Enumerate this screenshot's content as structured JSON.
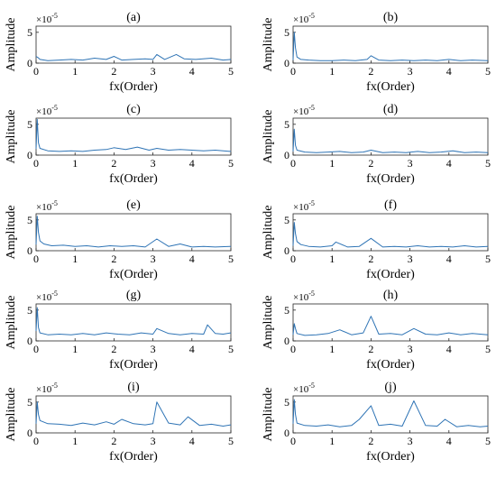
{
  "chart_data": [
    {
      "type": "line",
      "title": "(a)",
      "xlabel": "fx(Order)",
      "ylabel": "Amplitude",
      "y_exponent": "×10",
      "y_exponent_power": "-5",
      "xlim": [
        0,
        5
      ],
      "ylim": [
        0,
        6
      ],
      "xticks": [
        "0",
        "1",
        "2",
        "3",
        "4",
        "5"
      ],
      "yticks": [
        "0",
        "5"
      ],
      "color": "#2f74b5",
      "series": [
        {
          "x": [
            0,
            0.05,
            0.1,
            0.3,
            0.6,
            0.9,
            1.2,
            1.5,
            1.8,
            2.0,
            2.2,
            2.5,
            2.8,
            3.0,
            3.1,
            3.3,
            3.6,
            3.8,
            4.1,
            4.5,
            4.8,
            5.0
          ],
          "y": [
            1.1,
            0.9,
            0.6,
            0.4,
            0.5,
            0.6,
            0.5,
            0.8,
            0.6,
            1.1,
            0.5,
            0.6,
            0.7,
            0.6,
            1.4,
            0.6,
            1.4,
            0.7,
            0.6,
            0.8,
            0.5,
            0.6
          ]
        }
      ]
    },
    {
      "type": "line",
      "title": "(b)",
      "xlabel": "fx(Order)",
      "ylabel": "Amplitude",
      "y_exponent": "×10",
      "y_exponent_power": "-5",
      "xlim": [
        0,
        5
      ],
      "ylim": [
        0,
        6
      ],
      "xticks": [
        "0",
        "1",
        "2",
        "3",
        "4",
        "5"
      ],
      "yticks": [
        "0",
        "5"
      ],
      "color": "#2f74b5",
      "series": [
        {
          "x": [
            0,
            0.03,
            0.06,
            0.1,
            0.2,
            0.4,
            0.7,
            1.0,
            1.3,
            1.6,
            1.9,
            2.0,
            2.2,
            2.5,
            2.8,
            3.1,
            3.4,
            3.7,
            4.0,
            4.3,
            4.6,
            5.0
          ],
          "y": [
            0.5,
            5.0,
            2.5,
            1.0,
            0.6,
            0.5,
            0.4,
            0.4,
            0.5,
            0.4,
            0.6,
            1.2,
            0.5,
            0.4,
            0.5,
            0.4,
            0.5,
            0.4,
            0.6,
            0.4,
            0.5,
            0.4
          ]
        }
      ]
    },
    {
      "type": "line",
      "title": "(c)",
      "xlabel": "fx(Order)",
      "ylabel": "Amplitude",
      "y_exponent": "×10",
      "y_exponent_power": "-5",
      "xlim": [
        0,
        5
      ],
      "ylim": [
        0,
        6
      ],
      "xticks": [
        "0",
        "1",
        "2",
        "3",
        "4",
        "5"
      ],
      "yticks": [
        "0",
        "5"
      ],
      "color": "#2f74b5",
      "series": [
        {
          "x": [
            0,
            0.03,
            0.06,
            0.1,
            0.3,
            0.6,
            0.9,
            1.2,
            1.5,
            1.8,
            2.0,
            2.3,
            2.6,
            2.9,
            3.1,
            3.4,
            3.7,
            4.0,
            4.3,
            4.6,
            5.0
          ],
          "y": [
            1.0,
            5.8,
            2.0,
            1.1,
            0.7,
            0.6,
            0.7,
            0.6,
            0.8,
            0.9,
            1.2,
            0.9,
            1.3,
            0.8,
            1.1,
            0.8,
            0.9,
            0.8,
            0.7,
            0.8,
            0.6
          ]
        }
      ]
    },
    {
      "type": "line",
      "title": "(d)",
      "xlabel": "fx(Order)",
      "ylabel": "Amplitude",
      "y_exponent": "×10",
      "y_exponent_power": "-5",
      "xlim": [
        0,
        5
      ],
      "ylim": [
        0,
        6
      ],
      "xticks": [
        "0",
        "1",
        "2",
        "3",
        "4",
        "5"
      ],
      "yticks": [
        "0",
        "5"
      ],
      "color": "#2f74b5",
      "series": [
        {
          "x": [
            0,
            0.03,
            0.06,
            0.1,
            0.3,
            0.6,
            0.9,
            1.2,
            1.5,
            1.8,
            2.0,
            2.3,
            2.6,
            2.9,
            3.2,
            3.5,
            3.8,
            4.1,
            4.4,
            4.7,
            5.0
          ],
          "y": [
            0.6,
            4.2,
            1.6,
            0.8,
            0.5,
            0.4,
            0.5,
            0.6,
            0.4,
            0.5,
            0.8,
            0.4,
            0.5,
            0.4,
            0.6,
            0.4,
            0.5,
            0.7,
            0.4,
            0.5,
            0.4
          ]
        }
      ]
    },
    {
      "type": "line",
      "title": "(e)",
      "xlabel": "fx(Order)",
      "ylabel": "Amplitude",
      "y_exponent": "×10",
      "y_exponent_power": "-5",
      "xlim": [
        0,
        5
      ],
      "ylim": [
        0,
        6
      ],
      "xticks": [
        "0",
        "1",
        "2",
        "3",
        "4",
        "5"
      ],
      "yticks": [
        "0",
        "5"
      ],
      "color": "#2f74b5",
      "series": [
        {
          "x": [
            0,
            0.03,
            0.06,
            0.1,
            0.2,
            0.4,
            0.7,
            1.0,
            1.3,
            1.6,
            1.9,
            2.2,
            2.5,
            2.8,
            3.1,
            3.4,
            3.7,
            4.0,
            4.3,
            4.6,
            5.0
          ],
          "y": [
            1.0,
            5.6,
            3.0,
            1.6,
            1.1,
            0.8,
            0.9,
            0.7,
            0.8,
            0.6,
            0.8,
            0.7,
            0.8,
            0.6,
            1.9,
            0.7,
            1.1,
            0.6,
            0.7,
            0.6,
            0.7
          ]
        }
      ]
    },
    {
      "type": "line",
      "title": "(f)",
      "xlabel": "fx(Order)",
      "ylabel": "Amplitude",
      "y_exponent": "×10",
      "y_exponent_power": "-5",
      "xlim": [
        0,
        5
      ],
      "ylim": [
        0,
        6
      ],
      "xticks": [
        "0",
        "1",
        "2",
        "3",
        "4",
        "5"
      ],
      "yticks": [
        "0",
        "5"
      ],
      "color": "#2f74b5",
      "series": [
        {
          "x": [
            0,
            0.03,
            0.06,
            0.1,
            0.2,
            0.4,
            0.7,
            1.0,
            1.1,
            1.4,
            1.7,
            2.0,
            2.3,
            2.6,
            2.9,
            3.2,
            3.5,
            3.8,
            4.1,
            4.4,
            4.7,
            5.0
          ],
          "y": [
            0.8,
            4.6,
            2.8,
            1.5,
            1.0,
            0.7,
            0.6,
            0.8,
            1.4,
            0.6,
            0.7,
            2.0,
            0.6,
            0.7,
            0.6,
            0.8,
            0.6,
            0.7,
            0.6,
            0.8,
            0.6,
            0.7
          ]
        }
      ]
    },
    {
      "type": "line",
      "title": "(g)",
      "xlabel": "fx(Order)",
      "ylabel": "Amplitude",
      "y_exponent": "×10",
      "y_exponent_power": "-5",
      "xlim": [
        0,
        5
      ],
      "ylim": [
        0,
        6
      ],
      "xticks": [
        "0",
        "1",
        "2",
        "3",
        "4",
        "5"
      ],
      "yticks": [
        "0",
        "5"
      ],
      "color": "#2f74b5",
      "series": [
        {
          "x": [
            0,
            0.03,
            0.06,
            0.1,
            0.3,
            0.6,
            0.9,
            1.2,
            1.5,
            1.8,
            2.1,
            2.4,
            2.7,
            3.0,
            3.1,
            3.4,
            3.7,
            4.0,
            4.3,
            4.4,
            4.6,
            4.8,
            5.0
          ],
          "y": [
            1.6,
            5.4,
            2.2,
            1.3,
            1.0,
            1.1,
            1.0,
            1.2,
            1.0,
            1.3,
            1.1,
            1.0,
            1.3,
            1.1,
            2.0,
            1.2,
            1.0,
            1.2,
            1.1,
            2.6,
            1.2,
            1.1,
            1.3
          ]
        }
      ]
    },
    {
      "type": "line",
      "title": "(h)",
      "xlabel": "fx(Order)",
      "ylabel": "Amplitude",
      "y_exponent": "×10",
      "y_exponent_power": "-5",
      "xlim": [
        0,
        5
      ],
      "ylim": [
        0,
        6
      ],
      "xticks": [
        "0",
        "1",
        "2",
        "3",
        "4",
        "5"
      ],
      "yticks": [
        "0",
        "5"
      ],
      "color": "#2f74b5",
      "series": [
        {
          "x": [
            0,
            0.03,
            0.06,
            0.1,
            0.3,
            0.6,
            0.9,
            1.2,
            1.5,
            1.8,
            2.0,
            2.2,
            2.5,
            2.8,
            3.1,
            3.4,
            3.7,
            4.0,
            4.3,
            4.6,
            5.0
          ],
          "y": [
            1.0,
            2.8,
            2.0,
            1.2,
            0.9,
            1.0,
            1.2,
            1.8,
            1.0,
            1.3,
            4.0,
            1.1,
            1.2,
            1.0,
            2.0,
            1.1,
            1.0,
            1.3,
            1.0,
            1.2,
            1.0
          ]
        }
      ]
    },
    {
      "type": "line",
      "title": "(i)",
      "xlabel": "fx(Order)",
      "ylabel": "Amplitude",
      "y_exponent": "×10",
      "y_exponent_power": "-5",
      "xlim": [
        0,
        5
      ],
      "ylim": [
        0,
        6
      ],
      "xticks": [
        "0",
        "1",
        "2",
        "3",
        "4",
        "5"
      ],
      "yticks": [
        "0",
        "5"
      ],
      "color": "#2f74b5",
      "series": [
        {
          "x": [
            0,
            0.03,
            0.06,
            0.1,
            0.3,
            0.6,
            0.9,
            1.2,
            1.5,
            1.8,
            2.0,
            2.2,
            2.5,
            2.8,
            3.0,
            3.1,
            3.4,
            3.7,
            3.9,
            4.2,
            4.5,
            4.8,
            5.0
          ],
          "y": [
            1.5,
            5.0,
            3.0,
            2.0,
            1.5,
            1.4,
            1.2,
            1.6,
            1.3,
            1.8,
            1.4,
            2.2,
            1.5,
            1.3,
            1.5,
            5.0,
            1.6,
            1.3,
            2.6,
            1.2,
            1.4,
            1.1,
            1.3
          ]
        }
      ]
    },
    {
      "type": "line",
      "title": "(j)",
      "xlabel": "fx(Order)",
      "ylabel": "Amplitude",
      "y_exponent": "×10",
      "y_exponent_power": "-5",
      "xlim": [
        0,
        5
      ],
      "ylim": [
        0,
        6
      ],
      "xticks": [
        "0",
        "1",
        "2",
        "3",
        "4",
        "5"
      ],
      "yticks": [
        "0",
        "5"
      ],
      "color": "#2f74b5",
      "series": [
        {
          "x": [
            0,
            0.03,
            0.06,
            0.1,
            0.3,
            0.6,
            0.9,
            1.2,
            1.5,
            1.7,
            2.0,
            2.2,
            2.5,
            2.8,
            3.1,
            3.4,
            3.7,
            3.9,
            4.2,
            4.5,
            4.8,
            5.0
          ],
          "y": [
            1.5,
            5.4,
            3.0,
            1.6,
            1.2,
            1.1,
            1.3,
            1.0,
            1.2,
            2.2,
            4.4,
            1.2,
            1.4,
            1.1,
            5.2,
            1.2,
            1.1,
            2.2,
            1.0,
            1.2,
            1.0,
            1.1
          ]
        }
      ]
    }
  ]
}
